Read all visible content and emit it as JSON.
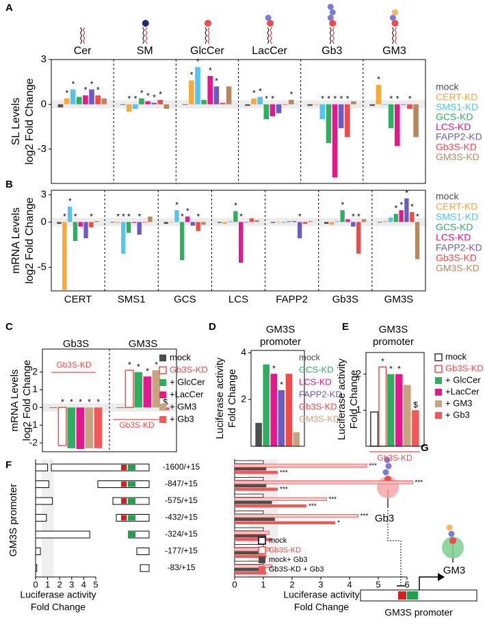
{
  "chart_data": [
    {
      "panel": "A",
      "type": "bar",
      "categories": [
        "Cer",
        "SM",
        "GlcCer",
        "LacCer",
        "Gb3",
        "GM3"
      ],
      "ylabel": [
        "SL Levels",
        "log2 Fold Change"
      ],
      "ylim": [
        -5.3,
        3
      ],
      "yticks": [
        -3,
        0,
        3
      ],
      "legend": "right",
      "legend_style": "text",
      "series": [
        {
          "name": "mock",
          "color": "#4d4d4d",
          "values": [
            -0.2,
            0,
            0,
            -0.1,
            -0.1,
            -0.1
          ],
          "significance": [
            null,
            null,
            null,
            null,
            null,
            null
          ]
        },
        {
          "name": "CERT-KD",
          "color": "#f7a93b",
          "values": [
            0.4,
            -0.5,
            1.6,
            0.4,
            0,
            1.3
          ],
          "significance": [
            "*",
            "*",
            "*",
            "*",
            null,
            "*"
          ]
        },
        {
          "name": "SMS1-KD",
          "color": "#55c3ec",
          "values": [
            1.0,
            -0.3,
            2.5,
            0.5,
            -1.0,
            0
          ],
          "significance": [
            "*",
            "*",
            "*",
            "*",
            "*",
            null
          ]
        },
        {
          "name": "GCS-KD",
          "color": "#2fae60",
          "values": [
            0.5,
            0.4,
            0.3,
            -1.0,
            -2.6,
            -1.6
          ],
          "significance": [
            null,
            "*",
            null,
            "*",
            "*",
            "*"
          ]
        },
        {
          "name": "LCS-KD",
          "color": "#e2198a",
          "values": [
            0.6,
            0.2,
            1.9,
            -0.8,
            -4.9,
            -2.8
          ],
          "significance": [
            "*",
            "*",
            "*",
            "*",
            "*",
            "*"
          ]
        },
        {
          "name": "FAPP2-KD",
          "color": "#6b5bc2",
          "values": [
            1.0,
            0.1,
            1.2,
            -0.6,
            -1.6,
            0
          ],
          "significance": [
            "*",
            "*",
            "*",
            null,
            "*",
            null
          ]
        },
        {
          "name": "Gb3S-KD",
          "color": "#ef4b4b",
          "values": [
            0.6,
            0.3,
            0.1,
            0,
            -2.2,
            -0.3
          ],
          "significance": [
            "*",
            "*",
            null,
            null,
            "*",
            "*"
          ]
        },
        {
          "name": "GM3S-KD",
          "color": "#b8875c",
          "values": [
            0.4,
            -0.3,
            1.2,
            0.3,
            0.2,
            -2.2
          ],
          "significance": [
            null,
            null,
            null,
            "*",
            null,
            null
          ]
        }
      ]
    },
    {
      "panel": "B",
      "type": "bar",
      "categories": [
        "CERT",
        "SMS1",
        "GCS",
        "LCS",
        "FAPP2",
        "Gb3S",
        "GM3S"
      ],
      "ylabel": [
        "mRNA Levels",
        "log2 Fold Change"
      ],
      "ylim": [
        -7.6,
        3.5
      ],
      "yticks": [
        -5,
        0,
        3
      ],
      "legend": "right",
      "legend_style": "text",
      "series": [
        {
          "name": "mock",
          "color": "#4d4d4d",
          "values": [
            -0.2,
            0,
            -0.2,
            -0.1,
            -0.1,
            -0.2,
            0
          ],
          "significance": [
            null,
            null,
            null,
            null,
            null,
            null,
            null
          ]
        },
        {
          "name": "CERT-KD",
          "color": "#f7a93b",
          "values": [
            -7.5,
            -0.1,
            0,
            -0.2,
            0,
            -0.3,
            0.1
          ],
          "significance": [
            "*",
            "*",
            null,
            null,
            null,
            null,
            null
          ]
        },
        {
          "name": "SMS1-KD",
          "color": "#55c3ec",
          "values": [
            1.7,
            -3.5,
            1.3,
            0.1,
            -0.1,
            0.1,
            0.5
          ],
          "significance": [
            "*",
            "*",
            "*",
            null,
            null,
            null,
            null
          ]
        },
        {
          "name": "GCS-KD",
          "color": "#2fae60",
          "values": [
            -2.1,
            -1.2,
            -4.2,
            1.2,
            0.1,
            1.3,
            0.9
          ],
          "significance": [
            "*",
            "*",
            "*",
            "*",
            null,
            "*",
            "*"
          ]
        },
        {
          "name": "LCS-KD",
          "color": "#e2198a",
          "values": [
            -0.5,
            -0.1,
            0.6,
            -4.5,
            0.1,
            0.3,
            1.3
          ],
          "significance": [
            null,
            null,
            "*",
            "*",
            null,
            null,
            "*"
          ]
        },
        {
          "name": "FAPP2-KD",
          "color": "#6b5bc2",
          "values": [
            -1.8,
            -1.4,
            -0.4,
            0,
            -1.8,
            -0.5,
            2.6
          ],
          "significance": [
            null,
            "*",
            null,
            null,
            "*",
            "*",
            "*"
          ]
        },
        {
          "name": "Gb3S-KD",
          "color": "#ef4b4b",
          "values": [
            -0.6,
            0,
            -1.0,
            0.4,
            -0.2,
            -3.5,
            1.1
          ],
          "significance": [
            "*",
            null,
            "*",
            null,
            null,
            "*",
            "*"
          ]
        },
        {
          "name": "GM3S-KD",
          "color": "#b8875c",
          "values": [
            0.1,
            0.6,
            -0.3,
            0.2,
            0.1,
            0.3,
            -4.1
          ],
          "significance": [
            null,
            null,
            null,
            null,
            null,
            null,
            "*"
          ]
        }
      ]
    },
    {
      "panel": "C",
      "type": "bar",
      "categories": [
        "Gb3S",
        "GM3S"
      ],
      "ylabel": [
        "mRNA Levels",
        "log2 Fold Change"
      ],
      "ylim": [
        -2.5,
        3.3
      ],
      "yticks": [
        -2,
        -1,
        0,
        1,
        2
      ],
      "legend": "right",
      "legend_style": "swatch",
      "annotations": [
        "Gb3S-KD",
        "Gb3S-KD"
      ],
      "series": [
        {
          "name": "mock",
          "color": "#4d4d4d",
          "values": [
            0,
            0
          ],
          "significance": [
            null,
            null
          ]
        },
        {
          "name": "Gb3S-KD",
          "color": "#ef4b4b",
          "hollow": true,
          "values": [
            -2.15,
            2.1
          ],
          "significance": [
            "*",
            "*"
          ]
        },
        {
          "name": "+ GlcCer",
          "color": "#2fae60",
          "values": [
            -2.3,
            2.0
          ],
          "significance": [
            "*",
            "*"
          ]
        },
        {
          "name": "+LacCer",
          "color": "#e2198a",
          "values": [
            -2.35,
            1.75
          ],
          "significance": [
            "*",
            "*"
          ]
        },
        {
          "name": "+ GM3",
          "color": "#c9a27e",
          "values": [
            -2.3,
            2.1
          ],
          "significance": [
            "*",
            "*"
          ]
        },
        {
          "name": "+ Gb3",
          "color": "#ee5a5a",
          "values": [
            -2.3,
            -0.15
          ],
          "significance": [
            "*",
            "$"
          ]
        }
      ]
    },
    {
      "panel": "D",
      "type": "bar",
      "title": [
        "GM3S",
        "promoter"
      ],
      "ylabel": [
        "Luciferase activity",
        "Fold Change"
      ],
      "ylim": [
        0,
        4.1
      ],
      "yticks": [
        2,
        4
      ],
      "legend": "right",
      "legend_style": "text",
      "series": [
        {
          "name": "mock",
          "color": "#4d4d4d",
          "values": [
            1.0
          ],
          "significance": [
            null
          ]
        },
        {
          "name": "GCS-KD",
          "color": "#2fae60",
          "values": [
            3.5
          ],
          "significance": [
            null
          ]
        },
        {
          "name": "LCS-KD",
          "color": "#e2198a",
          "values": [
            3.1
          ],
          "significance": [
            "*"
          ]
        },
        {
          "name": "FAPP2-KD",
          "color": "#6b5bc2",
          "values": [
            2.4
          ],
          "significance": [
            "*"
          ]
        },
        {
          "name": "Gb3S-KD",
          "color": "#ef4b4b",
          "values": [
            3.1
          ],
          "significance": [
            null
          ]
        },
        {
          "name": "GM3S-KD",
          "color": "#c9a27e",
          "values": [
            0.6
          ],
          "significance": [
            null
          ]
        }
      ]
    },
    {
      "panel": "E",
      "type": "bar",
      "title": [
        "GM3S",
        "promoter"
      ],
      "ylabel": [
        "Luciferase activity",
        "Fold Change"
      ],
      "ylim": [
        0,
        2.6
      ],
      "yticks": [
        1,
        2
      ],
      "legend": "right",
      "legend_style": "swatch",
      "annotations": [
        "Gb3S-KD"
      ],
      "series": [
        {
          "name": "mock",
          "color": "#333333",
          "hollow": true,
          "values": [
            0.95
          ],
          "significance": [
            null
          ]
        },
        {
          "name": "Gb3S-KD",
          "color": "#ef4b4b",
          "hollow": true,
          "values": [
            2.2
          ],
          "significance": [
            "*"
          ]
        },
        {
          "name": "+ GlcCer",
          "color": "#2fae60",
          "values": [
            2.0
          ],
          "significance": [
            "*"
          ]
        },
        {
          "name": "+LacCer",
          "color": "#e2198a",
          "values": [
            2.0
          ],
          "significance": [
            "*"
          ]
        },
        {
          "name": "+ GM3",
          "color": "#c9a27e",
          "values": [
            1.7
          ],
          "significance": [
            null
          ]
        },
        {
          "name": "+ Gb3",
          "color": "#ee5a5a",
          "values": [
            1.0
          ],
          "significance": [
            "$"
          ]
        }
      ]
    },
    {
      "panel": "F",
      "type": "hbar",
      "categories": [
        "-1600/+15",
        "-847/+15",
        "-575/+15",
        "-432/+15",
        "-324/+15",
        "-177/+15",
        "-83/+15"
      ],
      "values": [
        1.0,
        1.1,
        1.4,
        0.9,
        4.5,
        0.4,
        0.1
      ],
      "color": "#000000",
      "hollow": true,
      "xlim": [
        0,
        5
      ],
      "xticks": [
        0,
        1,
        2,
        3,
        4,
        5
      ],
      "xlabel": [
        "Luciferase activity",
        "Fold Change"
      ],
      "ylabel": "GM3S promoter"
    },
    {
      "type": "hbar",
      "xlim": [
        0,
        6
      ],
      "xticks": [
        0,
        1,
        2,
        3,
        4,
        5,
        6
      ],
      "xlabel": [
        "Luciferase activity",
        "Fold Change"
      ],
      "legend": "lower right",
      "legend_style": "swatch",
      "series": [
        {
          "name": "mock",
          "color": "#000000",
          "hollow": true,
          "values": [
            1.0,
            1.0,
            1.0,
            1.0,
            1.0,
            1.0,
            1.0
          ],
          "significance": [
            null,
            null,
            null,
            null,
            null,
            null,
            null
          ]
        },
        {
          "name": "Gb3S-KD",
          "color": "#ef4b4b",
          "hollow": true,
          "values": [
            4.6,
            6.2,
            3.2,
            4.3,
            1.2,
            1.2,
            1.3
          ],
          "significance": [
            "***",
            "***",
            "***",
            "***",
            null,
            null,
            null
          ]
        },
        {
          "name": "mock+ Gb3",
          "color": "#4d4d4d",
          "values": [
            1.1,
            1.1,
            1.3,
            1.4,
            1.1,
            1.0,
            1.0
          ],
          "significance": [
            null,
            null,
            null,
            null,
            null,
            null,
            null
          ]
        },
        {
          "name": "Gb3S-KD + Gb3",
          "color": "#ee5a5a",
          "values": [
            1.5,
            1.5,
            2.5,
            3.5,
            1.3,
            1.1,
            1.1
          ],
          "significance": [
            "***",
            "***",
            "***",
            "*",
            null,
            null,
            null
          ]
        }
      ]
    }
  ],
  "diagram": {
    "panel": "G",
    "nodes": [
      "Gb3",
      "GM3"
    ],
    "promoter": "GM3S promoter"
  }
}
